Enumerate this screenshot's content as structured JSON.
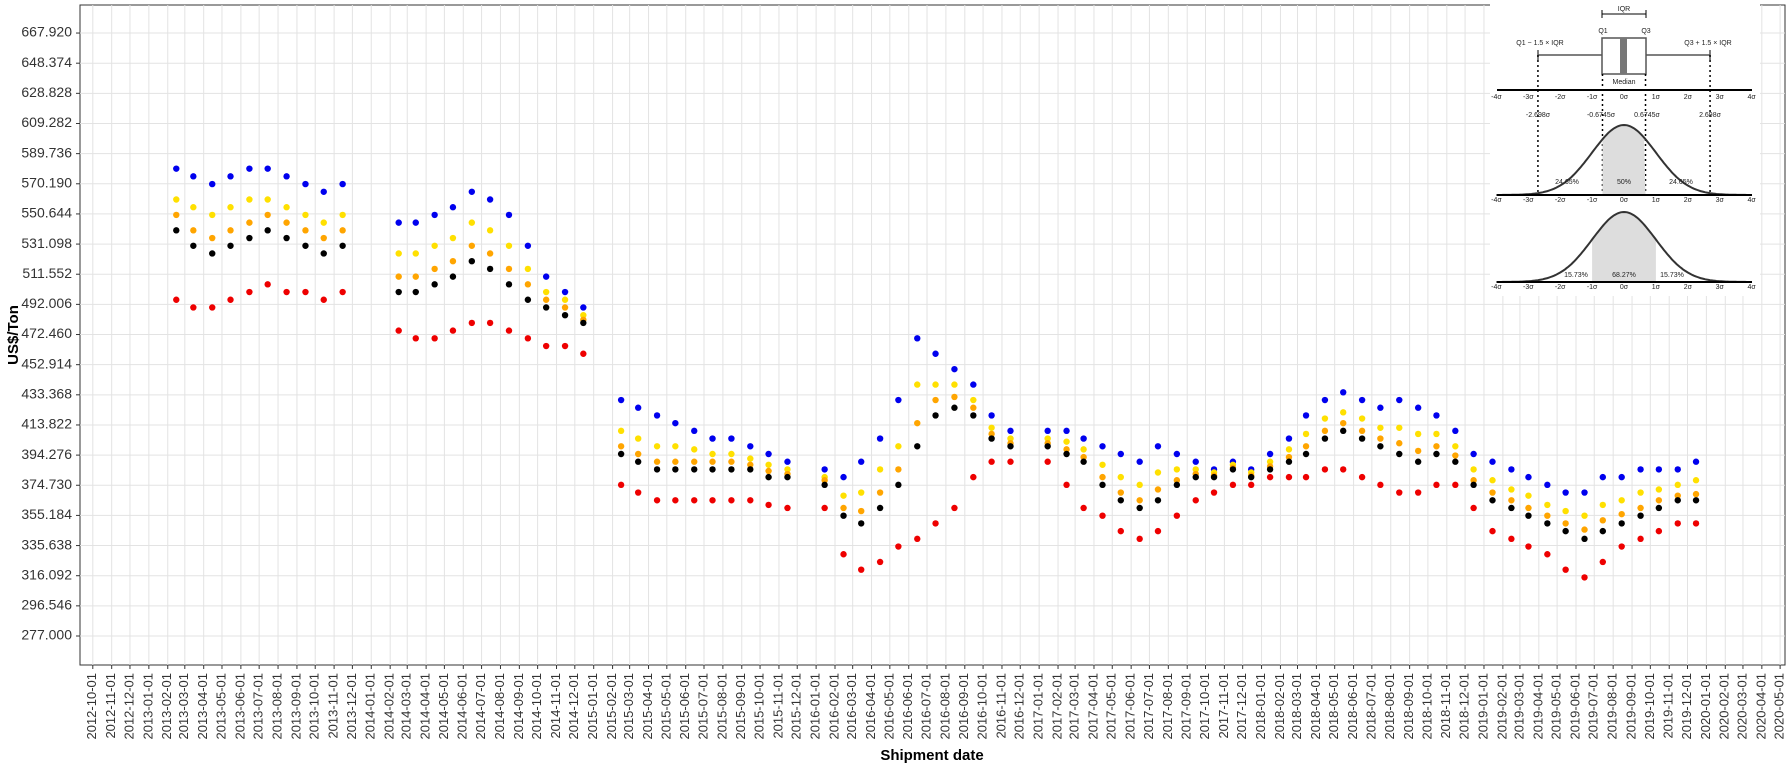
{
  "chart_data": {
    "type": "scatter",
    "x_label": "Shipment date",
    "y_label": "US$/Ton",
    "grid": true,
    "xlim": [
      "2012-09-10",
      "2020-05-09"
    ],
    "ylim": [
      258.2,
      686.1
    ],
    "yticks": [
      {
        "value": 277,
        "label": "277.000"
      },
      {
        "value": 296.546,
        "label": "296.546"
      },
      {
        "value": 316.092,
        "label": "316.092"
      },
      {
        "value": 335.638,
        "label": "335.638"
      },
      {
        "value": 355.184,
        "label": "355.184"
      },
      {
        "value": 374.73,
        "label": "374.730"
      },
      {
        "value": 394.276,
        "label": "394.276"
      },
      {
        "value": 413.822,
        "label": "413.822"
      },
      {
        "value": 433.368,
        "label": "433.368"
      },
      {
        "value": 452.914,
        "label": "452.914"
      },
      {
        "value": 472.46,
        "label": "472.460"
      },
      {
        "value": 492.006,
        "label": "492.006"
      },
      {
        "value": 511.552,
        "label": "511.552"
      },
      {
        "value": 531.098,
        "label": "531.098"
      },
      {
        "value": 550.644,
        "label": "550.644"
      },
      {
        "value": 570.19,
        "label": "570.190"
      },
      {
        "value": 589.736,
        "label": "589.736"
      },
      {
        "value": 609.282,
        "label": "609.282"
      },
      {
        "value": 628.828,
        "label": "628.828"
      },
      {
        "value": 648.374,
        "label": "648.374"
      },
      {
        "value": 667.92,
        "label": "667.920"
      }
    ],
    "xticks": [
      "2012-10-01",
      "2012-11-01",
      "2012-12-01",
      "2013-01-01",
      "2013-02-01",
      "2013-03-01",
      "2013-04-01",
      "2013-05-01",
      "2013-06-01",
      "2013-07-01",
      "2013-08-01",
      "2013-09-01",
      "2013-10-01",
      "2013-11-01",
      "2013-12-01",
      "2014-01-01",
      "2014-02-01",
      "2014-03-01",
      "2014-04-01",
      "2014-05-01",
      "2014-06-01",
      "2014-07-01",
      "2014-08-01",
      "2014-09-01",
      "2014-10-01",
      "2014-11-01",
      "2014-12-01",
      "2015-01-01",
      "2015-02-01",
      "2015-03-01",
      "2015-04-01",
      "2015-05-01",
      "2015-06-01",
      "2015-07-01",
      "2015-08-01",
      "2015-09-01",
      "2015-10-01",
      "2015-11-01",
      "2015-12-01",
      "2016-01-01",
      "2016-02-01",
      "2016-03-01",
      "2016-04-01",
      "2016-05-01",
      "2016-06-01",
      "2016-07-01",
      "2016-08-01",
      "2016-09-01",
      "2016-10-01",
      "2016-11-01",
      "2016-12-01",
      "2017-01-01",
      "2017-02-01",
      "2017-03-01",
      "2017-04-01",
      "2017-05-01",
      "2017-06-01",
      "2017-07-01",
      "2017-08-01",
      "2017-09-01",
      "2017-10-01",
      "2017-11-01",
      "2017-12-01",
      "2018-01-01",
      "2018-02-01",
      "2018-03-01",
      "2018-04-01",
      "2018-05-01",
      "2018-06-01",
      "2018-07-01",
      "2018-08-01",
      "2018-09-01",
      "2018-10-01",
      "2018-11-01",
      "2018-12-01",
      "2019-01-01",
      "2019-02-01",
      "2019-03-01",
      "2019-04-01",
      "2019-05-01",
      "2019-06-01",
      "2019-07-01",
      "2019-08-01",
      "2019-09-01",
      "2019-10-01",
      "2019-11-01",
      "2019-12-01",
      "2020-01-01",
      "2020-02-01",
      "2020-03-01",
      "2020-04-01",
      "2020-05-01"
    ],
    "x": [
      "2013-02-15",
      "2013-03-15",
      "2013-04-15",
      "2013-05-15",
      "2013-06-15",
      "2013-07-15",
      "2013-08-15",
      "2013-09-15",
      "2013-10-15",
      "2013-11-15",
      "2014-02-15",
      "2014-03-15",
      "2014-04-15",
      "2014-05-15",
      "2014-06-15",
      "2014-07-15",
      "2014-08-15",
      "2014-09-15",
      "2014-10-15",
      "2014-11-15",
      "2014-12-15",
      "2015-02-15",
      "2015-03-15",
      "2015-04-15",
      "2015-05-15",
      "2015-06-15",
      "2015-07-15",
      "2015-08-15",
      "2015-09-15",
      "2015-10-15",
      "2015-11-15",
      "2016-01-15",
      "2016-02-15",
      "2016-03-15",
      "2016-04-15",
      "2016-05-15",
      "2016-06-15",
      "2016-07-15",
      "2016-08-15",
      "2016-09-15",
      "2016-10-15",
      "2016-11-15",
      "2017-01-15",
      "2017-02-15",
      "2017-03-15",
      "2017-04-15",
      "2017-05-15",
      "2017-06-15",
      "2017-07-15",
      "2017-08-15",
      "2017-09-15",
      "2017-10-15",
      "2017-11-15",
      "2017-12-15",
      "2018-01-15",
      "2018-02-15",
      "2018-03-15",
      "2018-04-15",
      "2018-05-15",
      "2018-06-15",
      "2018-07-15",
      "2018-08-15",
      "2018-09-15",
      "2018-10-15",
      "2018-11-15",
      "2018-12-15",
      "2019-01-15",
      "2019-02-15",
      "2019-03-15",
      "2019-04-15",
      "2019-05-15",
      "2019-06-15",
      "2019-07-15",
      "2019-08-15",
      "2019-09-15",
      "2019-10-15",
      "2019-11-15",
      "2019-12-15"
    ],
    "series": [
      {
        "color": "#0000ee",
        "values": [
          580,
          575,
          570,
          575,
          580,
          580,
          575,
          570,
          565,
          570,
          545,
          545,
          550,
          555,
          565,
          560,
          550,
          530,
          510,
          500,
          490,
          430,
          425,
          420,
          415,
          410,
          405,
          405,
          400,
          395,
          390,
          385,
          380,
          390,
          405,
          430,
          470,
          460,
          450,
          440,
          420,
          410,
          410,
          410,
          405,
          400,
          395,
          390,
          400,
          395,
          390,
          385,
          390,
          385,
          395,
          405,
          420,
          430,
          435,
          430,
          425,
          430,
          425,
          420,
          410,
          395,
          390,
          385,
          380,
          375,
          370,
          370,
          380,
          380,
          385,
          385,
          385,
          390
        ]
      },
      {
        "color": "#ffe000",
        "values": [
          560,
          555,
          550,
          555,
          560,
          560,
          555,
          550,
          545,
          550,
          525,
          525,
          530,
          535,
          545,
          540,
          530,
          515,
          500,
          495,
          485,
          410,
          405,
          400,
          400,
          398,
          395,
          395,
          392,
          388,
          385,
          380,
          368,
          370,
          385,
          400,
          440,
          440,
          440,
          430,
          412,
          405,
          405,
          403,
          398,
          388,
          380,
          375,
          383,
          385,
          385,
          383,
          388,
          383,
          390,
          398,
          408,
          418,
          422,
          418,
          412,
          412,
          408,
          408,
          400,
          385,
          378,
          372,
          368,
          362,
          358,
          355,
          362,
          365,
          370,
          372,
          375,
          378
        ]
      },
      {
        "color": "#ffa500",
        "values": [
          550,
          540,
          535,
          540,
          545,
          550,
          545,
          540,
          535,
          540,
          510,
          510,
          515,
          520,
          530,
          525,
          515,
          505,
          495,
          490,
          482,
          400,
          395,
          390,
          390,
          390,
          390,
          390,
          388,
          384,
          382,
          378,
          360,
          358,
          370,
          385,
          415,
          430,
          432,
          425,
          408,
          402,
          402,
          398,
          393,
          380,
          370,
          365,
          372,
          378,
          382,
          381,
          386,
          381,
          387,
          393,
          400,
          410,
          415,
          410,
          405,
          402,
          397,
          400,
          394,
          378,
          370,
          365,
          360,
          355,
          350,
          346,
          352,
          356,
          360,
          365,
          368,
          369
        ]
      },
      {
        "color": "#ee0000",
        "values": [
          495,
          490,
          490,
          495,
          500,
          505,
          500,
          500,
          495,
          500,
          475,
          470,
          470,
          475,
          480,
          480,
          475,
          470,
          465,
          465,
          460,
          375,
          370,
          365,
          365,
          365,
          365,
          365,
          365,
          362,
          360,
          360,
          330,
          320,
          325,
          335,
          340,
          350,
          360,
          380,
          390,
          390,
          390,
          375,
          360,
          355,
          345,
          340,
          345,
          355,
          365,
          370,
          375,
          375,
          380,
          380,
          380,
          385,
          385,
          380,
          375,
          370,
          370,
          375,
          375,
          360,
          345,
          340,
          335,
          330,
          320,
          315,
          325,
          335,
          340,
          345,
          350,
          350
        ]
      },
      {
        "color": "#000000",
        "values": [
          540,
          530,
          525,
          530,
          535,
          540,
          535,
          530,
          525,
          530,
          500,
          500,
          505,
          510,
          520,
          515,
          505,
          495,
          490,
          485,
          480,
          395,
          390,
          385,
          385,
          385,
          385,
          385,
          385,
          380,
          380,
          375,
          355,
          350,
          360,
          375,
          400,
          420,
          425,
          420,
          405,
          400,
          400,
          395,
          390,
          375,
          365,
          360,
          365,
          375,
          380,
          380,
          385,
          380,
          385,
          390,
          395,
          405,
          410,
          405,
          400,
          395,
          390,
          395,
          390,
          375,
          365,
          360,
          355,
          350,
          345,
          340,
          345,
          350,
          355,
          360,
          365,
          365
        ]
      }
    ],
    "inset": {
      "iqr": "IQR",
      "q1": "Q1",
      "q3": "Q3",
      "lower_fence": "Q1 − 1.5 × IQR",
      "upper_fence": "Q3 + 1.5 × IQR",
      "median": "Median",
      "sigma_labels": [
        "-4σ",
        "-3σ",
        "-2σ",
        "-1σ",
        "0σ",
        "1σ",
        "2σ",
        "3σ",
        "4σ"
      ],
      "quantile_labels": [
        "-2.698σ",
        "-0.6745σ",
        "0.6745σ",
        "2.698σ"
      ],
      "iqr_shares": [
        "24.65%",
        "50%",
        "24.65%"
      ],
      "sd_shares": [
        "15.73%",
        "68.27%",
        "15.73%"
      ]
    }
  }
}
